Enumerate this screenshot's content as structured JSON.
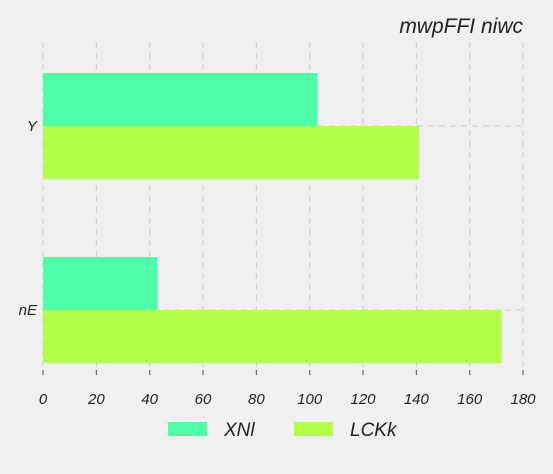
{
  "chart_data": {
    "type": "bar",
    "orientation": "horizontal",
    "title": "mwpFFI niwc",
    "xlabel": "",
    "ylabel": "",
    "categories": [
      "Y",
      "nE"
    ],
    "series": [
      {
        "name": "XNl",
        "values": [
          103,
          43
        ],
        "color": "#4dffa6"
      },
      {
        "name": "LCKk",
        "values": [
          141,
          172
        ],
        "color": "#b3ff47"
      }
    ],
    "xlim": [
      0,
      180
    ],
    "xticks": [
      0,
      20,
      40,
      60,
      80,
      100,
      120,
      140,
      160,
      180
    ],
    "grid": true,
    "legend_position": "bottom"
  }
}
